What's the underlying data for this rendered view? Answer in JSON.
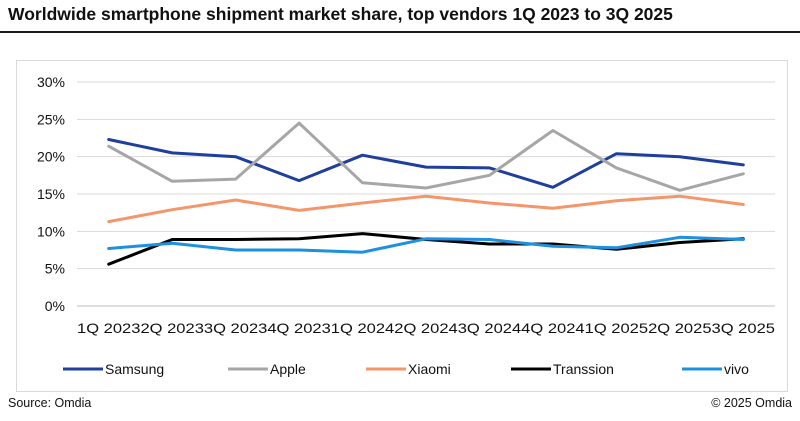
{
  "header": {
    "title": "Worldwide smartphone shipment market share, top vendors 1Q 2023 to 3Q 2025"
  },
  "footer": {
    "source": "Source: Omdia",
    "copyright": "© 2025 Omdia"
  },
  "chart_data": {
    "type": "line",
    "title": "Worldwide smartphone shipment market share, top vendors 1Q 2023 to 3Q 2025",
    "xlabel": "",
    "ylabel": "",
    "ylim": [
      0,
      30
    ],
    "y_ticks": [
      "0%",
      "5%",
      "10%",
      "15%",
      "20%",
      "25%",
      "30%"
    ],
    "grid": true,
    "legend_position": "bottom",
    "categories": [
      "1Q 2023",
      "2Q 2023",
      "3Q 2023",
      "4Q 2023",
      "1Q 2024",
      "2Q 2024",
      "3Q 2024",
      "4Q 2024",
      "1Q 2025",
      "2Q 2025",
      "3Q 2025"
    ],
    "series": [
      {
        "name": "Samsung",
        "color": "#1f3f9e",
        "values": [
          22.3,
          20.5,
          20.0,
          16.8,
          20.2,
          18.6,
          18.5,
          15.9,
          20.4,
          20.0,
          18.9
        ]
      },
      {
        "name": "Apple",
        "color": "#a6a6a6",
        "values": [
          21.4,
          16.7,
          17.0,
          24.5,
          16.5,
          15.8,
          17.5,
          23.5,
          18.5,
          15.5,
          17.7
        ]
      },
      {
        "name": "Xiaomi",
        "color": "#f4956a",
        "values": [
          11.3,
          12.9,
          14.2,
          12.8,
          13.8,
          14.7,
          13.8,
          13.1,
          14.1,
          14.7,
          13.6
        ]
      },
      {
        "name": "Transsion",
        "color": "#000000",
        "values": [
          5.6,
          8.9,
          8.9,
          9.0,
          9.7,
          8.9,
          8.3,
          8.3,
          7.6,
          8.5,
          9.0
        ]
      },
      {
        "name": "vivo",
        "color": "#1e90e0",
        "values": [
          7.7,
          8.4,
          7.5,
          7.5,
          7.2,
          9.0,
          8.9,
          8.0,
          7.8,
          9.2,
          8.9
        ]
      }
    ]
  }
}
